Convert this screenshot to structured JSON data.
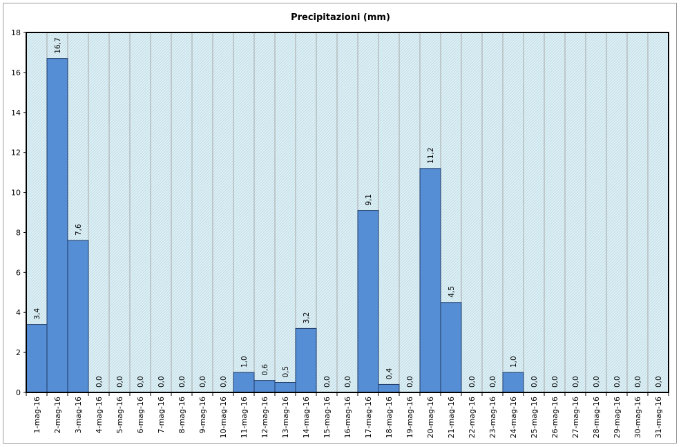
{
  "chart_data": {
    "type": "bar",
    "title": "Precipitazioni (mm)",
    "xlabel": "",
    "ylabel": "",
    "ylim": [
      0,
      18
    ],
    "yticks": [
      "0",
      "2",
      "4",
      "6",
      "8",
      "10",
      "12",
      "14",
      "16",
      "18"
    ],
    "grid": true,
    "legend": "none",
    "categories": [
      "1-mag-16",
      "2-mag-16",
      "3-mag-16",
      "4-mag-16",
      "5-mag-16",
      "6-mag-16",
      "7-mag-16",
      "8-mag-16",
      "9-mag-16",
      "10-mag-16",
      "11-mag-16",
      "12-mag-16",
      "13-mag-16",
      "14-mag-16",
      "15-mag-16",
      "16-mag-16",
      "17-mag-16",
      "18-mag-16",
      "19-mag-16",
      "20-mag-16",
      "21-mag-16",
      "22-mag-16",
      "23-mag-16",
      "24-mag-16",
      "25-mag-16",
      "26-mag-16",
      "27-mag-16",
      "28-mag-16",
      "29-mag-16",
      "30-mag-16",
      "31-mag-16"
    ],
    "values": [
      3.4,
      16.7,
      7.6,
      0.0,
      0.0,
      0.0,
      0.0,
      0.0,
      0.0,
      0.0,
      1.0,
      0.6,
      0.5,
      3.2,
      0.0,
      0.0,
      9.1,
      0.4,
      0.0,
      11.2,
      4.5,
      0.0,
      0.0,
      1.0,
      0.0,
      0.0,
      0.0,
      0.0,
      0.0,
      0.0,
      0.0
    ],
    "data_labels": [
      "3,4",
      "16,7",
      "7,6",
      "0,0",
      "0,0",
      "0,0",
      "0,0",
      "0,0",
      "0,0",
      "0,0",
      "1,0",
      "0,6",
      "0,5",
      "3,2",
      "0,0",
      "0,0",
      "9,1",
      "0,4",
      "0,0",
      "11,2",
      "4,5",
      "0,0",
      "0,0",
      "1,0",
      "0,0",
      "0,0",
      "0,0",
      "0,0",
      "0,0",
      "0,0",
      "0,0"
    ],
    "colors": {
      "bar_fill": "#558ed5",
      "bar_stroke": "#1f3864",
      "plot_background": "#daeef3",
      "gridline": "#a6a6a6"
    }
  }
}
